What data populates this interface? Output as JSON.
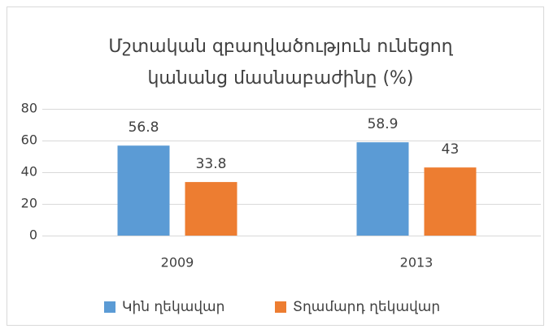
{
  "chart_data": {
    "type": "bar",
    "title": [
      "Մշտական զբաղվածություն ունեցող",
      "կանանց մասնաբաժինը (%)"
    ],
    "categories": [
      "2009",
      "2013"
    ],
    "series": [
      {
        "name": "Կին ղեկավար",
        "color": "#5b9bd5",
        "values": [
          56.8,
          58.9
        ]
      },
      {
        "name": "Տղամարդ ղեկավար",
        "color": "#ed7d31",
        "values": [
          33.8,
          43
        ]
      }
    ],
    "ylim": [
      0,
      80
    ],
    "yticks": [
      0,
      20,
      40,
      60,
      80
    ],
    "grid": true,
    "legend": "bottom"
  }
}
